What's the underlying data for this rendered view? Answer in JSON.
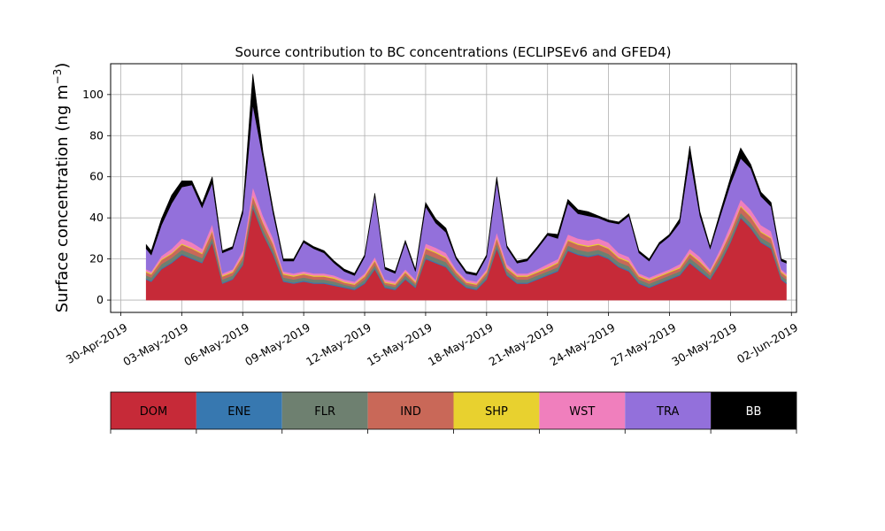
{
  "chart_data": {
    "type": "area",
    "stacked": true,
    "title": "Source contribution to BC concentrations (ECLIPSEv6 and GFED4)",
    "ylabel_main": "Surface concentration (ng m",
    "ylabel_sup": "−3",
    "ylabel_close": ")",
    "xlabel": "",
    "x_range": [
      "2019-04-29T12:00",
      "2019-06-02T06:00"
    ],
    "ylim": [
      -6,
      115
    ],
    "grid": true,
    "x_ticks": [
      {
        "date": "2019-04-30",
        "label": "30-Apr-2019"
      },
      {
        "date": "2019-05-03",
        "label": "03-May-2019"
      },
      {
        "date": "2019-05-06",
        "label": "06-May-2019"
      },
      {
        "date": "2019-05-09",
        "label": "09-May-2019"
      },
      {
        "date": "2019-05-12",
        "label": "12-May-2019"
      },
      {
        "date": "2019-05-15",
        "label": "15-May-2019"
      },
      {
        "date": "2019-05-18",
        "label": "18-May-2019"
      },
      {
        "date": "2019-05-21",
        "label": "21-May-2019"
      },
      {
        "date": "2019-05-24",
        "label": "24-May-2019"
      },
      {
        "date": "2019-05-27",
        "label": "27-May-2019"
      },
      {
        "date": "2019-05-30",
        "label": "30-May-2019"
      },
      {
        "date": "2019-06-02",
        "label": "02-Jun-2019"
      }
    ],
    "y_ticks": [
      0,
      20,
      40,
      60,
      80,
      100
    ],
    "legend_placement": "bottom colorbar",
    "legend": [
      {
        "name": "DOM",
        "color": "#c62a38",
        "text_color": "#000000"
      },
      {
        "name": "ENE",
        "color": "#3778b0",
        "text_color": "#000000"
      },
      {
        "name": "FLR",
        "color": "#6e8070",
        "text_color": "#000000"
      },
      {
        "name": "IND",
        "color": "#c96858",
        "text_color": "#000000"
      },
      {
        "name": "SHP",
        "color": "#e8d12f",
        "text_color": "#000000"
      },
      {
        "name": "WST",
        "color": "#f07fbd",
        "text_color": "#000000"
      },
      {
        "name": "TRA",
        "color": "#9370db",
        "text_color": "#000000"
      },
      {
        "name": "BB",
        "color": "#000000",
        "text_color": "#ffffff"
      }
    ],
    "series_x": [
      "2019-05-01T06:00",
      "2019-05-01T12:00",
      "2019-05-02T00:00",
      "2019-05-02T12:00",
      "2019-05-03T00:00",
      "2019-05-03T12:00",
      "2019-05-04T00:00",
      "2019-05-04T12:00",
      "2019-05-05T00:00",
      "2019-05-05T12:00",
      "2019-05-06T00:00",
      "2019-05-06T12:00",
      "2019-05-07T00:00",
      "2019-05-07T12:00",
      "2019-05-08T00:00",
      "2019-05-08T12:00",
      "2019-05-09T00:00",
      "2019-05-09T12:00",
      "2019-05-10T00:00",
      "2019-05-10T12:00",
      "2019-05-11T00:00",
      "2019-05-11T12:00",
      "2019-05-12T00:00",
      "2019-05-12T12:00",
      "2019-05-13T00:00",
      "2019-05-13T12:00",
      "2019-05-14T00:00",
      "2019-05-14T12:00",
      "2019-05-15T00:00",
      "2019-05-15T12:00",
      "2019-05-16T00:00",
      "2019-05-16T12:00",
      "2019-05-17T00:00",
      "2019-05-17T12:00",
      "2019-05-18T00:00",
      "2019-05-18T12:00",
      "2019-05-19T00:00",
      "2019-05-19T12:00",
      "2019-05-20T00:00",
      "2019-05-20T12:00",
      "2019-05-21T00:00",
      "2019-05-21T12:00",
      "2019-05-22T00:00",
      "2019-05-22T12:00",
      "2019-05-23T00:00",
      "2019-05-23T12:00",
      "2019-05-24T00:00",
      "2019-05-24T12:00",
      "2019-05-25T00:00",
      "2019-05-25T12:00",
      "2019-05-26T00:00",
      "2019-05-26T12:00",
      "2019-05-27T00:00",
      "2019-05-27T12:00",
      "2019-05-28T00:00",
      "2019-05-28T12:00",
      "2019-05-29T00:00",
      "2019-05-29T12:00",
      "2019-05-30T00:00",
      "2019-05-30T12:00",
      "2019-05-31T00:00",
      "2019-05-31T12:00",
      "2019-06-01T00:00",
      "2019-06-01T12:00",
      "2019-06-01T18:00"
    ],
    "series": [
      {
        "name": "DOM",
        "values": [
          10,
          9,
          15,
          18,
          22,
          20,
          18,
          28,
          8,
          10,
          17,
          45,
          32,
          22,
          9,
          8,
          9,
          8,
          8,
          7,
          6,
          5,
          8,
          15,
          6,
          5,
          10,
          6,
          20,
          18,
          16,
          10,
          6,
          5,
          10,
          25,
          12,
          8,
          8,
          10,
          12,
          14,
          24,
          22,
          21,
          22,
          20,
          16,
          14,
          8,
          6,
          8,
          10,
          12,
          18,
          14,
          10,
          18,
          28,
          40,
          35,
          28,
          25,
          10,
          8
        ]
      },
      {
        "name": "ENE",
        "values": [
          0.5,
          0.5,
          0.5,
          0.5,
          0.5,
          0.5,
          0.5,
          0.5,
          0.5,
          0.5,
          0.5,
          0.5,
          0.5,
          0.5,
          0.5,
          0.5,
          0.5,
          0.5,
          0.5,
          0.5,
          0.5,
          0.5,
          0.5,
          0.5,
          0.5,
          0.5,
          0.5,
          0.5,
          0.5,
          0.5,
          0.5,
          0.5,
          0.5,
          0.5,
          0.5,
          0.5,
          0.5,
          0.5,
          0.5,
          0.5,
          0.5,
          0.5,
          0.5,
          0.5,
          0.5,
          0.5,
          0.5,
          0.5,
          0.5,
          0.5,
          0.5,
          0.5,
          0.5,
          0.5,
          0.5,
          0.5,
          0.5,
          0.5,
          0.5,
          0.5,
          0.5,
          0.5,
          0.5,
          0.5,
          0.5
        ]
      },
      {
        "name": "FLR",
        "values": [
          1.5,
          1.5,
          2,
          2,
          2,
          2,
          2,
          2,
          1.5,
          1.5,
          2,
          2,
          2,
          2,
          1.5,
          1.5,
          1.5,
          1.5,
          1.5,
          1.5,
          1,
          1,
          1.5,
          1.5,
          1,
          1,
          1.5,
          1,
          2,
          2,
          2,
          1.5,
          1,
          1,
          1.5,
          2,
          1.5,
          1.5,
          1.5,
          1.5,
          1.5,
          1.5,
          2,
          2,
          2,
          2,
          2,
          2,
          2,
          1.5,
          1.5,
          1.5,
          1.5,
          1.5,
          2,
          2,
          1.5,
          2,
          2,
          2,
          2,
          2,
          2,
          1.5,
          1.5
        ]
      },
      {
        "name": "IND",
        "values": [
          1.5,
          1.5,
          2,
          2,
          2.5,
          2.5,
          2,
          3,
          1.5,
          1.5,
          2,
          3,
          3,
          2.5,
          1.5,
          1.5,
          1.5,
          1.5,
          1.5,
          1.5,
          1,
          1,
          1.5,
          2,
          1,
          1,
          1.5,
          1,
          2.5,
          2.5,
          2,
          1.5,
          1,
          1,
          1.5,
          2.5,
          1.5,
          1.5,
          1.5,
          1.5,
          1.5,
          2,
          2.5,
          2.5,
          2.5,
          2.5,
          2.5,
          2,
          2,
          1.5,
          1.5,
          1.5,
          1.5,
          1.5,
          2,
          2,
          1.5,
          2,
          2.5,
          3,
          3,
          2.5,
          2.5,
          1.5,
          1.5
        ]
      },
      {
        "name": "SHP",
        "values": [
          0.5,
          0.5,
          0.5,
          0.5,
          0.5,
          0.5,
          0.5,
          0.5,
          0.5,
          0.5,
          0.5,
          0.5,
          0.5,
          0.5,
          0.5,
          0.5,
          0.5,
          0.5,
          0.5,
          0.5,
          0.5,
          0.5,
          0.5,
          0.5,
          0.5,
          0.5,
          0.5,
          0.5,
          0.5,
          0.5,
          0.5,
          0.5,
          0.5,
          0.5,
          0.5,
          0.5,
          0.5,
          0.5,
          0.5,
          0.5,
          0.5,
          0.5,
          0.5,
          0.5,
          0.5,
          0.5,
          0.5,
          0.5,
          0.5,
          0.5,
          0.5,
          0.5,
          0.5,
          0.5,
          0.5,
          0.5,
          0.5,
          0.5,
          0.5,
          0.5,
          0.5,
          0.5,
          0.5,
          0.5,
          0.5
        ]
      },
      {
        "name": "WST",
        "values": [
          1,
          1,
          1.5,
          2,
          2.5,
          2.5,
          2,
          3,
          1,
          1,
          2,
          4,
          3,
          2.5,
          1,
          1,
          1,
          1,
          1,
          1,
          1,
          1,
          1,
          1.5,
          1,
          1,
          1,
          1,
          2,
          2,
          2,
          1,
          1,
          1,
          1,
          2.5,
          1.5,
          1,
          1,
          1,
          1.5,
          1.5,
          2.5,
          2.5,
          2.5,
          2.5,
          2.5,
          2,
          2,
          1,
          1,
          1,
          1,
          1.5,
          2,
          2,
          1,
          2,
          3,
          3,
          3,
          3,
          3,
          1,
          1
        ]
      },
      {
        "name": "TRA",
        "values": [
          10,
          8,
          15,
          22,
          25,
          28,
          20,
          20,
          10,
          10,
          18,
          40,
          28,
          12,
          5,
          6,
          14,
          12,
          10,
          6,
          4,
          3,
          8,
          30,
          5,
          4,
          13,
          4,
          18,
          12,
          10,
          5,
          3,
          3,
          6,
          25,
          8,
          5,
          6,
          10,
          14,
          10,
          15,
          12,
          12,
          10,
          10,
          14,
          20,
          10,
          8,
          14,
          16,
          20,
          45,
          20,
          10,
          16,
          20,
          20,
          20,
          14,
          12,
          4,
          5
        ]
      },
      {
        "name": "BB",
        "values": [
          2,
          2,
          3,
          4,
          3,
          2,
          2,
          3,
          1,
          1,
          2,
          15,
          3,
          2,
          1,
          1,
          1,
          1,
          1,
          1,
          1,
          1,
          1,
          1,
          1,
          1,
          1,
          1,
          2,
          2,
          2,
          1,
          1,
          1,
          1,
          2,
          1,
          1,
          1,
          1,
          1,
          2,
          2,
          2,
          2,
          1,
          1,
          1,
          1,
          1,
          1,
          1,
          1,
          2,
          5,
          2,
          1,
          2,
          3,
          5,
          2,
          2,
          2,
          1,
          1
        ]
      }
    ]
  }
}
